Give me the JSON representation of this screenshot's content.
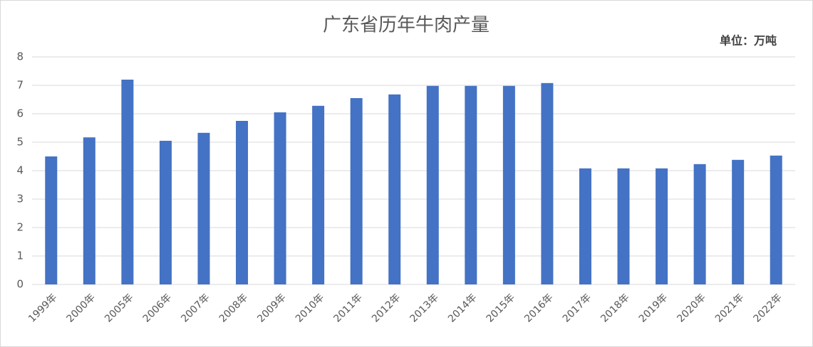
{
  "chart_data": {
    "type": "bar",
    "title": "广东省历年牛肉产量",
    "annotation": "单位：万吨",
    "categories": [
      "1999年",
      "2000年",
      "2005年",
      "2006年",
      "2007年",
      "2008年",
      "2009年",
      "2010年",
      "2011年",
      "2012年",
      "2013年",
      "2014年",
      "2015年",
      "2016年",
      "2017年",
      "2018年",
      "2019年",
      "2020年",
      "2021年",
      "2022年"
    ],
    "values": [
      4.5,
      5.17,
      7.2,
      5.05,
      5.33,
      5.75,
      6.05,
      6.28,
      6.55,
      6.68,
      6.98,
      6.98,
      6.98,
      7.08,
      4.08,
      4.08,
      4.08,
      4.23,
      4.38,
      4.53
    ],
    "color": "#4472c4",
    "ylim": [
      0,
      8
    ],
    "yticks": [
      0,
      1,
      2,
      3,
      4,
      5,
      6,
      7,
      8
    ],
    "grid": true
  }
}
